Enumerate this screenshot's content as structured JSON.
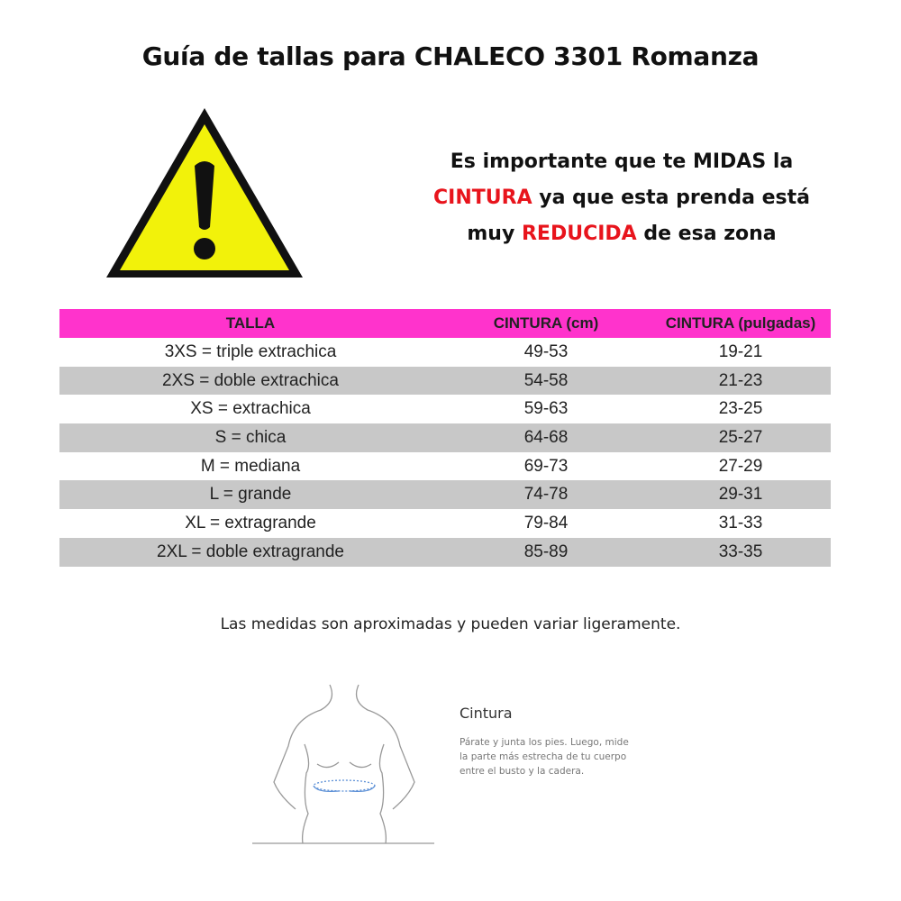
{
  "title": "Guía de tallas para CHALECO 3301 Romanza",
  "warning_icon": "warning-triangle-icon",
  "notice": {
    "line1": "Es importante que te MIDAS la",
    "line2_highlight": "CINTURA",
    "line2_rest": " ya que esta prenda está",
    "line3_start": "muy ",
    "line3_highlight": "REDUCIDA",
    "line3_rest": " de esa zona"
  },
  "colors": {
    "header": "#ff33cc",
    "stripe": "#c8c8c8",
    "highlight": "#e8141c",
    "warning": "#f2f20a"
  },
  "table": {
    "headers": [
      "TALLA",
      "CINTURA (cm)",
      "CINTURA (pulgadas)"
    ],
    "rows": [
      [
        "3XS = triple extrachica",
        "49-53",
        "19-21"
      ],
      [
        "2XS = doble extrachica",
        "54-58",
        "21-23"
      ],
      [
        "XS = extrachica",
        "59-63",
        "23-25"
      ],
      [
        "S = chica",
        "64-68",
        "25-27"
      ],
      [
        "M = mediana",
        "69-73",
        "27-29"
      ],
      [
        "L = grande",
        "74-78",
        "29-31"
      ],
      [
        "XL = extragrande",
        "79-84",
        "31-33"
      ],
      [
        "2XL = doble extragrande",
        "85-89",
        "33-35"
      ]
    ]
  },
  "note": "Las medidas son aproximadas y pueden variar ligeramente.",
  "measure": {
    "title": "Cintura",
    "instructions": "Párate y junta los pies. Luego, mide la parte más estrecha de tu cuerpo entre el busto y la cadera."
  }
}
